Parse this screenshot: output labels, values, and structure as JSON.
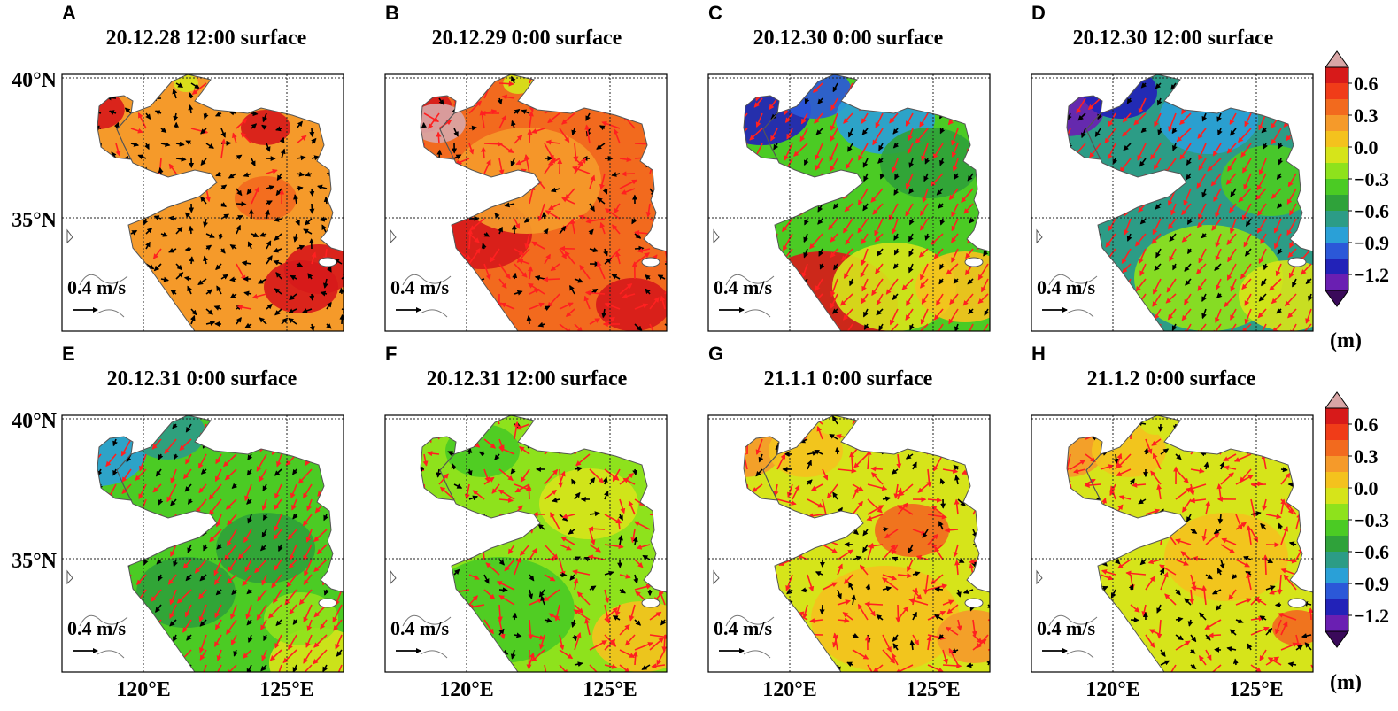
{
  "panels": [
    {
      "letter": "A",
      "title": "20.12.28 12:00 surface",
      "field": "A"
    },
    {
      "letter": "B",
      "title": "20.12.29 0:00 surface",
      "field": "B"
    },
    {
      "letter": "C",
      "title": "20.12.30 0:00 surface",
      "field": "C"
    },
    {
      "letter": "D",
      "title": "20.12.30 12:00 surface",
      "field": "D"
    },
    {
      "letter": "E",
      "title": "20.12.31 0:00 surface",
      "field": "E"
    },
    {
      "letter": "F",
      "title": "20.12.31 12:00 surface",
      "field": "F"
    },
    {
      "letter": "G",
      "title": "21.1.1 0:00 surface",
      "field": "G"
    },
    {
      "letter": "H",
      "title": "21.1.2 0:00 surface",
      "field": "H"
    }
  ],
  "axes": {
    "lat_labels": [
      "40°N",
      "35°N"
    ],
    "lon_labels": [
      "120°E",
      "125°E"
    ]
  },
  "scale_vector_label": "0.4 m/s",
  "colorbar": {
    "unit": "(m)",
    "tick_labels": [
      "0.6",
      "0.3",
      "0.0",
      "−0.3",
      "−0.6",
      "−0.9",
      "−1.2"
    ],
    "levels": [
      0.75,
      0.6,
      0.45,
      0.3,
      0.15,
      0.0,
      -0.15,
      -0.3,
      -0.45,
      -0.6,
      -0.75,
      -0.9,
      -1.05,
      -1.2,
      -1.35
    ],
    "colors": [
      "#d9a6a6",
      "#d71a1a",
      "#f03c18",
      "#f26a1e",
      "#f59a2a",
      "#f4c21d",
      "#d6e41a",
      "#8ee21c",
      "#4bcb24",
      "#2fa23a",
      "#2c9c86",
      "#2aa0d7",
      "#2b58d8",
      "#2222b8",
      "#6a1fb2",
      "#3a0a5a"
    ]
  },
  "legend_colors": {
    "vector_low": "#000000",
    "vector_high": "#ff2020",
    "land": "#ffffff",
    "coast": "#555555"
  }
}
